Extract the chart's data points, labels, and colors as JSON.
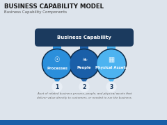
{
  "title": "BUSINESS CAPABILITY MODEL",
  "subtitle": "Business Capability Components",
  "banner_text": "Business Capability",
  "banner_color": "#1b3a5e",
  "circle_colors": [
    "#2b8fdb",
    "#1a5fa8",
    "#4db3f0"
  ],
  "circle_border_colors": [
    "#1a70b8",
    "#134d8a",
    "#2e9dd4"
  ],
  "circle_labels": [
    "Processes",
    "People",
    "Physical Assets"
  ],
  "circle_numbers": [
    "1",
    "2",
    "3"
  ],
  "bg_color": "#dde4ec",
  "footer_text": "A set of related business process, people, and physical assets that\ndeliver value directly to customers, or needed to run the business.",
  "title_color": "#1a1a1a",
  "subtitle_color": "#555555",
  "white": "#ffffff",
  "dark_blue": "#0d2a47",
  "number_bg": "#e8eef5",
  "number_color": "#1b3a5e"
}
